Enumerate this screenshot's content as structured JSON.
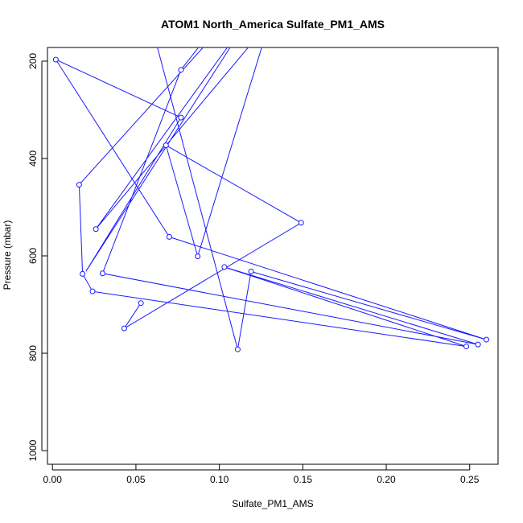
{
  "chart_data": {
    "type": "line",
    "title": "ATOM1 North_America Sulfate_PM1_AMS",
    "xlabel": "Sulfate_PM1_AMS",
    "ylabel": "Pressure (mbar)",
    "xlim": [
      -0.003,
      0.267
    ],
    "ylim": [
      1028,
      172
    ],
    "y_reversed": true,
    "grid": false,
    "xticks": [
      0.0,
      0.05,
      0.1,
      0.15,
      0.2,
      0.25
    ],
    "xtick_labels": [
      "0.00",
      "0.05",
      "0.10",
      "0.15",
      "0.20",
      "0.25"
    ],
    "yticks": [
      200,
      400,
      600,
      800,
      1000
    ],
    "ytick_labels": [
      "200",
      "400",
      "600",
      "800",
      "1000"
    ],
    "line_color": "#1a1aff",
    "series": [
      {
        "points": [
          {
            "x": 0.105,
            "y": 95,
            "marker": false
          },
          {
            "x": 0.077,
            "y": 218,
            "marker": true
          },
          {
            "x": 0.03,
            "y": 636,
            "marker": true
          },
          {
            "x": 0.255,
            "y": 782,
            "marker": true
          },
          {
            "x": 0.103,
            "y": 623,
            "marker": true
          },
          {
            "x": 0.248,
            "y": 786,
            "marker": true
          },
          {
            "x": 0.024,
            "y": 673,
            "marker": true
          },
          {
            "x": 0.018,
            "y": 637,
            "marker": true
          },
          {
            "x": 0.016,
            "y": 454,
            "marker": true
          },
          {
            "x": 0.1,
            "y": 135,
            "marker": false
          },
          {
            "x": 0.06,
            "y": 135,
            "marker": false
          },
          {
            "x": 0.111,
            "y": 792,
            "marker": true
          },
          {
            "x": 0.119,
            "y": 632,
            "marker": true
          },
          {
            "x": 0.26,
            "y": 772,
            "marker": true
          },
          {
            "x": 0.07,
            "y": 561,
            "marker": true
          },
          {
            "x": 0.002,
            "y": 197,
            "marker": true
          },
          {
            "x": 0.077,
            "y": 316,
            "marker": true
          },
          {
            "x": 0.02,
            "y": 632,
            "marker": false
          },
          {
            "x": 0.12,
            "y": 100,
            "marker": false
          },
          {
            "x": 0.12,
            "y": 100,
            "marker": false
          },
          {
            "x": 0.026,
            "y": 545,
            "marker": true
          },
          {
            "x": 0.13,
            "y": 120,
            "marker": false
          },
          {
            "x": 0.13,
            "y": 120,
            "marker": false
          },
          {
            "x": 0.087,
            "y": 601,
            "marker": true
          },
          {
            "x": 0.068,
            "y": 373,
            "marker": true
          },
          {
            "x": 0.149,
            "y": 532,
            "marker": true
          },
          {
            "x": 0.043,
            "y": 749,
            "marker": true
          },
          {
            "x": 0.053,
            "y": 697,
            "marker": true
          }
        ]
      }
    ]
  }
}
